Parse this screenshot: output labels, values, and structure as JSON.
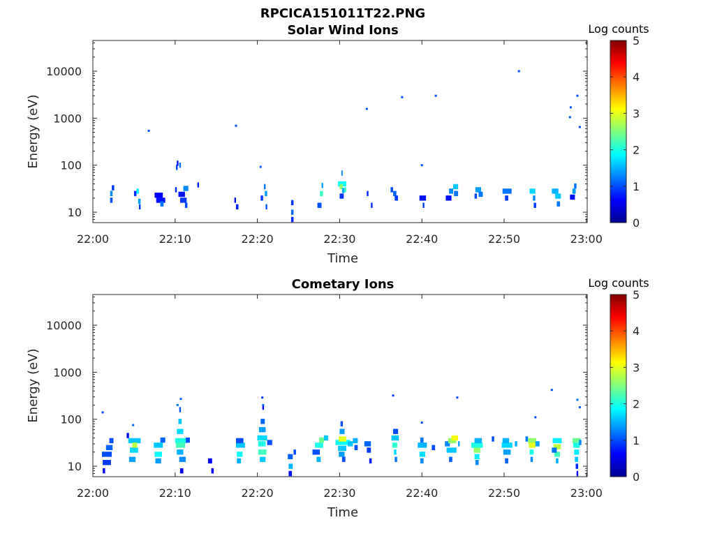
{
  "figure_title": "RPCICA151011T22.PNG",
  "chart_data": [
    {
      "type": "heatmap",
      "title": "Solar Wind Ions",
      "xlabel": "Time",
      "ylabel": "Energy (eV)",
      "y_scale": "log",
      "ylim": [
        6,
        45000
      ],
      "xlim": [
        "22:00",
        "23:00"
      ],
      "x_ticks": [
        "22:00",
        "22:10",
        "22:20",
        "22:30",
        "22:40",
        "22:50",
        "23:00"
      ],
      "y_ticks": [
        "10",
        "100",
        "1000",
        "10000"
      ],
      "colorbar": {
        "label": "Log counts",
        "range": [
          0,
          5
        ],
        "ticks": [
          "0",
          "1",
          "2",
          "3",
          "4",
          "5"
        ],
        "colormap": "jet"
      },
      "cells": [
        [
          2.1,
          2.4,
          25,
          1.3
        ],
        [
          2.1,
          2.4,
          18,
          1.0
        ],
        [
          2.3,
          2.6,
          33,
          0.9
        ],
        [
          5.0,
          5.3,
          25,
          0.8
        ],
        [
          5.3,
          5.6,
          28,
          1.8
        ],
        [
          5.5,
          5.8,
          17,
          1.4
        ],
        [
          5.6,
          5.8,
          13,
          0.9
        ],
        [
          7.5,
          8.5,
          23,
          0.6
        ],
        [
          7.7,
          8.8,
          18,
          0.7
        ],
        [
          8.2,
          8.6,
          15,
          1.2
        ],
        [
          10.0,
          10.2,
          30,
          0.8
        ],
        [
          10.1,
          10.3,
          90,
          1.0
        ],
        [
          10.2,
          10.4,
          110,
          0.7
        ],
        [
          10.5,
          10.7,
          100,
          1.2
        ],
        [
          10.4,
          11.2,
          24,
          0.7
        ],
        [
          10.6,
          11.4,
          18,
          0.9
        ],
        [
          11.0,
          11.6,
          32,
          1.3
        ],
        [
          11.2,
          11.5,
          14,
          1.0
        ],
        [
          12.7,
          12.9,
          38,
          0.8
        ],
        [
          17.2,
          17.4,
          18,
          0.7
        ],
        [
          17.4,
          17.7,
          13,
          0.8
        ],
        [
          20.4,
          20.7,
          20,
          0.9
        ],
        [
          20.8,
          21.0,
          35,
          1.2
        ],
        [
          20.9,
          21.2,
          25,
          1.4
        ],
        [
          21.0,
          21.2,
          13,
          1.0
        ],
        [
          24.1,
          24.4,
          16,
          0.9
        ],
        [
          24.1,
          24.4,
          10,
          1.1
        ],
        [
          24.1,
          24.4,
          7,
          0.8
        ],
        [
          27.3,
          27.8,
          14,
          1.0
        ],
        [
          27.6,
          28.0,
          25,
          2.2
        ],
        [
          27.8,
          28.0,
          37,
          1.4
        ],
        [
          29.8,
          30.8,
          40,
          1.9
        ],
        [
          30.0,
          30.4,
          35,
          2.6
        ],
        [
          30.2,
          30.3,
          68,
          1.3
        ],
        [
          30.3,
          30.6,
          29,
          1.5
        ],
        [
          30.0,
          30.5,
          22,
          0.9
        ],
        [
          30.6,
          30.8,
          30,
          2.2
        ],
        [
          33.3,
          33.5,
          25,
          0.8
        ],
        [
          33.8,
          34.0,
          14,
          0.8
        ],
        [
          36.2,
          36.5,
          30,
          1.0
        ],
        [
          36.5,
          36.9,
          25,
          1.1
        ],
        [
          36.7,
          37.1,
          20,
          0.9
        ],
        [
          39.7,
          40.5,
          20,
          0.7
        ],
        [
          40.1,
          40.3,
          14,
          0.9
        ],
        [
          42.9,
          43.6,
          20,
          0.7
        ],
        [
          43.3,
          43.8,
          28,
          1.3
        ],
        [
          43.8,
          44.4,
          35,
          1.6
        ],
        [
          43.9,
          44.4,
          25,
          1.2
        ],
        [
          46.5,
          47.2,
          30,
          1.4
        ],
        [
          46.9,
          47.4,
          24,
          1.2
        ],
        [
          46.4,
          46.7,
          22,
          1.0
        ],
        [
          49.8,
          50.9,
          28,
          1.2
        ],
        [
          50.1,
          50.5,
          20,
          0.9
        ],
        [
          53.1,
          53.8,
          28,
          1.7
        ],
        [
          53.5,
          53.8,
          20,
          1.3
        ],
        [
          53.6,
          53.9,
          14,
          0.9
        ],
        [
          55.8,
          56.6,
          28,
          1.5
        ],
        [
          56.2,
          56.9,
          22,
          1.6
        ],
        [
          56.4,
          56.8,
          15,
          1.2
        ],
        [
          58.0,
          58.6,
          21,
          0.7
        ],
        [
          58.3,
          58.7,
          28,
          1.4
        ],
        [
          58.5,
          58.8,
          36,
          1.2
        ]
      ],
      "points": [
        [
          6.8,
          540,
          1.0
        ],
        [
          17.4,
          690,
          1.0
        ],
        [
          20.4,
          92,
          1.0
        ],
        [
          33.3,
          1580,
          1.0
        ],
        [
          37.6,
          2800,
          1.0
        ],
        [
          40.0,
          100,
          1.0
        ],
        [
          41.7,
          3000,
          1.0
        ],
        [
          51.8,
          10000,
          1.0
        ],
        [
          58.0,
          1050,
          1.0
        ],
        [
          58.1,
          1700,
          1.0
        ],
        [
          58.9,
          3000,
          1.0
        ],
        [
          59.2,
          650,
          1.0
        ]
      ]
    },
    {
      "type": "heatmap",
      "title": "Cometary Ions",
      "xlabel": "Time",
      "ylabel": "Energy (eV)",
      "y_scale": "log",
      "ylim": [
        6,
        45000
      ],
      "xlim": [
        "22:00",
        "23:00"
      ],
      "x_ticks": [
        "22:00",
        "22:10",
        "22:20",
        "22:30",
        "22:40",
        "22:50",
        "23:00"
      ],
      "y_ticks": [
        "10",
        "100",
        "1000",
        "10000"
      ],
      "colorbar": {
        "label": "Log counts",
        "range": [
          0,
          5
        ],
        "ticks": [
          "0",
          "1",
          "2",
          "3",
          "4",
          "5"
        ],
        "colormap": "jet"
      },
      "cells": [
        [
          1.1,
          2.3,
          18,
          1.0
        ],
        [
          1.2,
          2.2,
          12,
          0.9
        ],
        [
          1.2,
          1.5,
          8,
          0.6
        ],
        [
          1.6,
          2.4,
          25,
          1.1
        ],
        [
          2.0,
          2.5,
          35,
          1.0
        ],
        [
          4.3,
          5.8,
          35,
          1.6
        ],
        [
          4.5,
          5.5,
          22,
          1.7
        ],
        [
          4.8,
          5.4,
          28,
          2.8
        ],
        [
          4.4,
          5.2,
          14,
          1.4
        ],
        [
          4.1,
          4.4,
          45,
          0.7
        ],
        [
          7.4,
          8.5,
          28,
          1.6
        ],
        [
          7.5,
          8.4,
          18,
          1.9
        ],
        [
          7.6,
          8.3,
          13,
          1.4
        ],
        [
          8.2,
          8.8,
          36,
          1.1
        ],
        [
          10.0,
          11.5,
          35,
          2.0
        ],
        [
          10.1,
          11.2,
          28,
          2.2
        ],
        [
          10.2,
          11.0,
          55,
          1.7
        ],
        [
          10.4,
          10.8,
          90,
          1.6
        ],
        [
          10.5,
          10.7,
          160,
          1.0
        ],
        [
          10.2,
          11.0,
          20,
          1.5
        ],
        [
          10.5,
          11.3,
          14,
          1.3
        ],
        [
          10.6,
          11.0,
          8,
          0.6
        ],
        [
          11.3,
          11.8,
          36,
          1.0
        ],
        [
          14.0,
          14.5,
          13,
          0.6
        ],
        [
          14.4,
          14.7,
          8,
          0.6
        ],
        [
          17.4,
          18.5,
          28,
          1.6
        ],
        [
          17.5,
          18.2,
          18,
          1.9
        ],
        [
          17.5,
          18.0,
          13,
          1.5
        ],
        [
          17.4,
          18.3,
          35,
          1.0
        ],
        [
          20.0,
          21.2,
          40,
          1.7
        ],
        [
          20.1,
          21.0,
          30,
          2.0
        ],
        [
          20.2,
          21.0,
          60,
          1.4
        ],
        [
          20.4,
          20.9,
          90,
          1.1
        ],
        [
          20.6,
          20.8,
          180,
          0.6
        ],
        [
          20.1,
          21.1,
          20,
          2.2
        ],
        [
          20.3,
          21.0,
          14,
          1.6
        ],
        [
          21.2,
          21.8,
          32,
          1.0
        ],
        [
          23.7,
          24.3,
          16,
          1.1
        ],
        [
          23.8,
          24.3,
          10,
          1.5
        ],
        [
          23.8,
          24.2,
          7,
          0.7
        ],
        [
          24.4,
          24.7,
          20,
          1.0
        ],
        [
          26.7,
          27.6,
          20,
          1.0
        ],
        [
          27.0,
          28.0,
          28,
          2.0
        ],
        [
          27.2,
          27.7,
          14,
          1.5
        ],
        [
          27.5,
          28.1,
          36,
          2.4
        ],
        [
          28.1,
          28.6,
          40,
          1.6
        ],
        [
          29.5,
          31.3,
          32,
          1.9
        ],
        [
          29.9,
          30.8,
          38,
          3.0
        ],
        [
          30.0,
          30.6,
          55,
          1.4
        ],
        [
          30.1,
          30.4,
          80,
          1.0
        ],
        [
          29.8,
          30.8,
          24,
          1.6
        ],
        [
          29.9,
          30.6,
          18,
          1.4
        ],
        [
          30.3,
          30.7,
          14,
          1.0
        ],
        [
          31.0,
          31.6,
          30,
          1.6
        ],
        [
          31.6,
          32.2,
          35,
          1.5
        ],
        [
          31.8,
          32.2,
          25,
          1.0
        ],
        [
          33.0,
          33.8,
          30,
          1.1
        ],
        [
          33.3,
          33.8,
          22,
          0.9
        ],
        [
          33.6,
          33.9,
          13,
          0.8
        ],
        [
          36.3,
          37.2,
          40,
          1.6
        ],
        [
          36.4,
          37.0,
          28,
          2.1
        ],
        [
          36.5,
          37.1,
          55,
          1.0
        ],
        [
          36.6,
          36.9,
          20,
          1.7
        ],
        [
          36.7,
          37.0,
          14,
          1.2
        ],
        [
          39.5,
          40.6,
          28,
          1.5
        ],
        [
          39.7,
          40.4,
          18,
          1.7
        ],
        [
          39.8,
          40.2,
          13,
          1.3
        ],
        [
          39.8,
          40.2,
          36,
          1.2
        ],
        [
          41.2,
          41.6,
          25,
          1.0
        ],
        [
          42.8,
          43.4,
          30,
          1.3
        ],
        [
          43.2,
          44.2,
          35,
          2.6
        ],
        [
          43.6,
          44.4,
          40,
          3.1
        ],
        [
          43.0,
          44.2,
          22,
          1.6
        ],
        [
          43.3,
          43.7,
          14,
          1.1
        ],
        [
          44.4,
          44.6,
          30,
          1.4
        ],
        [
          46.0,
          47.4,
          28,
          2.0
        ],
        [
          46.3,
          47.1,
          22,
          2.6
        ],
        [
          46.4,
          47.0,
          16,
          1.8
        ],
        [
          46.5,
          46.9,
          12,
          1.3
        ],
        [
          46.4,
          47.3,
          35,
          1.5
        ],
        [
          48.5,
          48.8,
          38,
          1.0
        ],
        [
          49.7,
          51.0,
          28,
          1.7
        ],
        [
          49.9,
          50.8,
          20,
          1.4
        ],
        [
          50.1,
          50.5,
          13,
          1.1
        ],
        [
          49.8,
          50.6,
          35,
          1.5
        ],
        [
          51.3,
          51.6,
          30,
          1.5
        ],
        [
          52.9,
          53.9,
          35,
          2.6
        ],
        [
          53.0,
          53.8,
          28,
          3.0
        ],
        [
          53.1,
          53.6,
          20,
          2.0
        ],
        [
          53.2,
          53.5,
          14,
          1.3
        ],
        [
          52.6,
          52.9,
          38,
          1.2
        ],
        [
          53.8,
          54.3,
          30,
          1.4
        ],
        [
          55.9,
          57.0,
          35,
          1.8
        ],
        [
          56.0,
          56.9,
          26,
          2.8
        ],
        [
          56.1,
          56.8,
          18,
          2.2
        ],
        [
          56.3,
          56.6,
          13,
          1.5
        ],
        [
          55.8,
          56.4,
          22,
          1.2
        ],
        [
          58.3,
          59.3,
          35,
          2.4
        ],
        [
          58.4,
          59.2,
          28,
          2.0
        ],
        [
          58.5,
          59.1,
          20,
          1.8
        ],
        [
          58.6,
          59.0,
          14,
          1.6
        ],
        [
          58.7,
          59.0,
          10,
          0.8
        ],
        [
          58.8,
          59.0,
          7,
          0.6
        ],
        [
          59.1,
          59.4,
          32,
          1.3
        ]
      ],
      "points": [
        [
          1.2,
          140,
          1.0
        ],
        [
          4.9,
          75,
          1.1
        ],
        [
          10.3,
          200,
          1.2
        ],
        [
          10.7,
          270,
          1.1
        ],
        [
          20.6,
          290,
          0.9
        ],
        [
          20.7,
          200,
          1.1
        ],
        [
          36.5,
          320,
          0.9
        ],
        [
          40.0,
          85,
          1.0
        ],
        [
          44.3,
          290,
          1.0
        ],
        [
          53.8,
          110,
          1.0
        ],
        [
          55.8,
          420,
          1.0
        ],
        [
          58.9,
          260,
          1.2
        ],
        [
          59.2,
          180,
          1.1
        ]
      ]
    }
  ]
}
